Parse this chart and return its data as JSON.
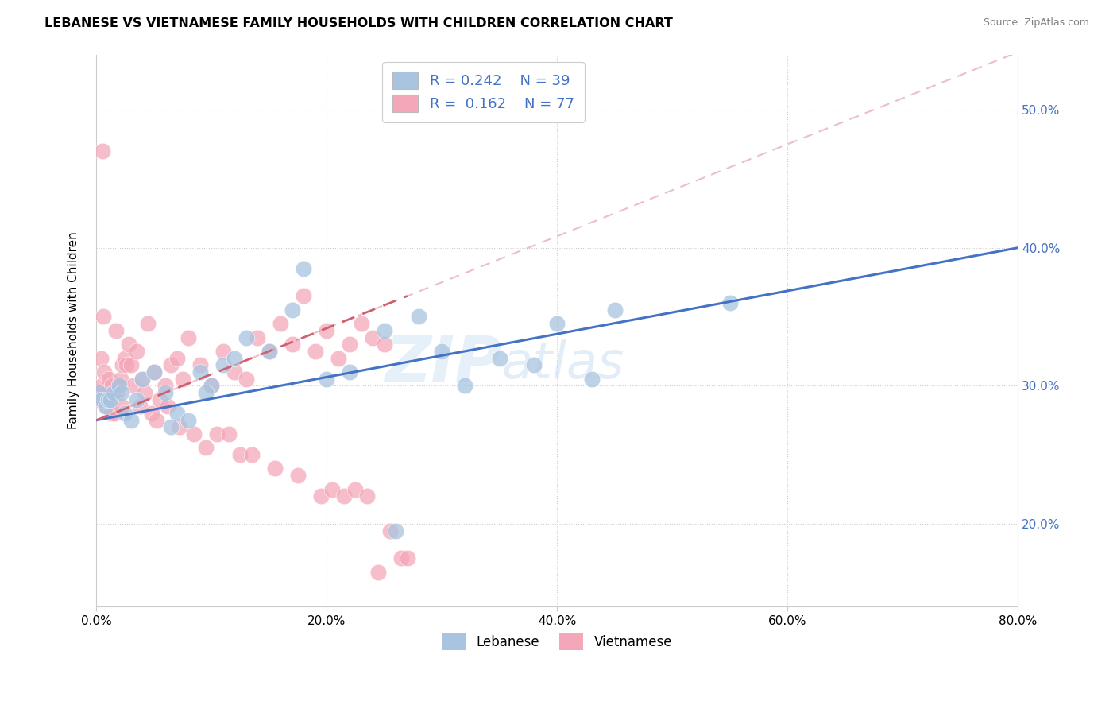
{
  "title": "LEBANESE VS VIETNAMESE FAMILY HOUSEHOLDS WITH CHILDREN CORRELATION CHART",
  "source": "Source: ZipAtlas.com",
  "ylabel": "Family Households with Children",
  "xlim": [
    0.0,
    80.0
  ],
  "ylim": [
    14.0,
    54.0
  ],
  "xticks": [
    0.0,
    20.0,
    40.0,
    60.0,
    80.0
  ],
  "yticks": [
    20.0,
    30.0,
    40.0,
    50.0
  ],
  "xtick_labels": [
    "0.0%",
    "20.0%",
    "40.0%",
    "60.0%",
    "80.0%"
  ],
  "ytick_labels": [
    "20.0%",
    "30.0%",
    "40.0%",
    "50.0%"
  ],
  "color_lebanese": "#a8c4e0",
  "color_vietnamese": "#f4a7b9",
  "color_line_lebanese": "#4472c4",
  "color_line_vietnamese": "#d06070",
  "watermark_zip": "ZIP",
  "watermark_atlas": "atlas",
  "lebanese_x": [
    0.3,
    0.5,
    0.8,
    1.0,
    1.2,
    1.5,
    2.0,
    2.5,
    3.0,
    3.5,
    4.0,
    5.0,
    6.0,
    7.0,
    8.0,
    9.0,
    10.0,
    11.0,
    12.0,
    13.0,
    15.0,
    17.0,
    18.0,
    20.0,
    22.0,
    25.0,
    26.0,
    28.0,
    30.0,
    32.0,
    35.0,
    38.0,
    40.0,
    43.0,
    45.0,
    55.0,
    6.5,
    9.5,
    2.2
  ],
  "lebanese_y": [
    29.5,
    29.0,
    28.5,
    29.0,
    29.0,
    29.5,
    30.0,
    28.0,
    27.5,
    29.0,
    30.5,
    31.0,
    29.5,
    28.0,
    27.5,
    31.0,
    30.0,
    31.5,
    32.0,
    33.5,
    32.5,
    35.5,
    38.5,
    30.5,
    31.0,
    34.0,
    19.5,
    35.0,
    32.5,
    30.0,
    32.0,
    31.5,
    34.5,
    30.5,
    35.5,
    36.0,
    27.0,
    29.5,
    29.5
  ],
  "vietnamese_x": [
    0.2,
    0.3,
    0.4,
    0.5,
    0.6,
    0.7,
    0.8,
    0.9,
    1.0,
    1.1,
    1.2,
    1.3,
    1.4,
    1.5,
    1.6,
    1.7,
    1.8,
    2.0,
    2.1,
    2.2,
    2.3,
    2.5,
    2.6,
    2.8,
    3.0,
    3.2,
    3.5,
    3.8,
    4.0,
    4.2,
    4.5,
    4.8,
    5.0,
    5.2,
    5.5,
    6.0,
    6.2,
    6.5,
    7.0,
    7.2,
    7.5,
    8.0,
    8.5,
    9.0,
    9.5,
    10.0,
    10.5,
    11.0,
    11.5,
    12.0,
    12.5,
    13.0,
    13.5,
    14.0,
    15.0,
    15.5,
    16.0,
    17.0,
    17.5,
    18.0,
    19.0,
    19.5,
    20.0,
    20.5,
    21.0,
    21.5,
    22.0,
    22.5,
    23.0,
    23.5,
    24.0,
    24.5,
    25.0,
    25.5,
    26.5,
    27.0,
    0.55
  ],
  "vietnamese_y": [
    29.5,
    29.0,
    32.0,
    30.0,
    35.0,
    31.0,
    29.5,
    28.5,
    29.0,
    30.5,
    29.0,
    28.0,
    30.0,
    29.5,
    28.0,
    34.0,
    29.5,
    30.0,
    30.5,
    28.5,
    31.5,
    32.0,
    31.5,
    33.0,
    31.5,
    30.0,
    32.5,
    28.5,
    30.5,
    29.5,
    34.5,
    28.0,
    31.0,
    27.5,
    29.0,
    30.0,
    28.5,
    31.5,
    32.0,
    27.0,
    30.5,
    33.5,
    26.5,
    31.5,
    25.5,
    30.0,
    26.5,
    32.5,
    26.5,
    31.0,
    25.0,
    30.5,
    25.0,
    33.5,
    32.5,
    24.0,
    34.5,
    33.0,
    23.5,
    36.5,
    32.5,
    22.0,
    34.0,
    22.5,
    32.0,
    22.0,
    33.0,
    22.5,
    34.5,
    22.0,
    33.5,
    16.5,
    33.0,
    19.5,
    17.5,
    17.5,
    47.0
  ],
  "leb_line_x": [
    0.0,
    80.0
  ],
  "leb_line_y": [
    27.5,
    40.0
  ],
  "vie_line_x": [
    0.0,
    27.0
  ],
  "vie_line_y": [
    27.5,
    36.5
  ]
}
